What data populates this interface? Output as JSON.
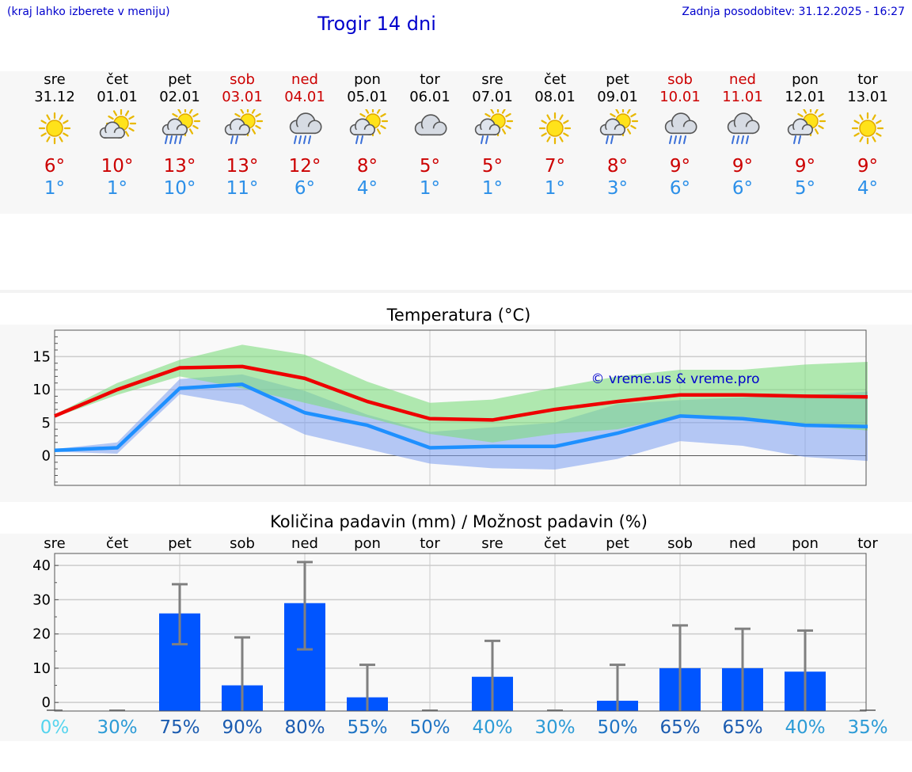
{
  "header": {
    "menu_hint": "(kraj lahko izberete v meniju)",
    "title": "Trogir 14 dni",
    "updated": "Zadnja posodobitev: 31.12.2025 - 16:27"
  },
  "days": [
    {
      "name": "sre",
      "date": "31.12",
      "icon": "sun-icon",
      "max": "6°",
      "min": "1°",
      "weekend": false
    },
    {
      "name": "čet",
      "date": "01.01",
      "icon": "sun-cloud-icon",
      "max": "10°",
      "min": "1°",
      "weekend": false
    },
    {
      "name": "pet",
      "date": "02.01",
      "icon": "sun-cloud-rain-icon",
      "max": "13°",
      "min": "10°",
      "weekend": false
    },
    {
      "name": "sob",
      "date": "03.01",
      "icon": "sun-cloud-light-rain-icon",
      "max": "13°",
      "min": "11°",
      "weekend": true
    },
    {
      "name": "ned",
      "date": "04.01",
      "icon": "cloud-rain-icon",
      "max": "12°",
      "min": "6°",
      "weekend": true
    },
    {
      "name": "pon",
      "date": "05.01",
      "icon": "sun-cloud-light-rain-icon",
      "max": "8°",
      "min": "4°",
      "weekend": false
    },
    {
      "name": "tor",
      "date": "06.01",
      "icon": "cloud-icon",
      "max": "5°",
      "min": "1°",
      "weekend": false
    },
    {
      "name": "sre",
      "date": "07.01",
      "icon": "sun-cloud-light-rain-icon",
      "max": "5°",
      "min": "1°",
      "weekend": false
    },
    {
      "name": "čet",
      "date": "08.01",
      "icon": "sun-icon",
      "max": "7°",
      "min": "1°",
      "weekend": false
    },
    {
      "name": "pet",
      "date": "09.01",
      "icon": "sun-cloud-light-rain-icon",
      "max": "8°",
      "min": "3°",
      "weekend": false
    },
    {
      "name": "sob",
      "date": "10.01",
      "icon": "cloud-rain-icon",
      "max": "9°",
      "min": "6°",
      "weekend": true
    },
    {
      "name": "ned",
      "date": "11.01",
      "icon": "cloud-rain-icon",
      "max": "9°",
      "min": "6°",
      "weekend": true
    },
    {
      "name": "pon",
      "date": "12.01",
      "icon": "sun-cloud-light-rain-icon",
      "max": "9°",
      "min": "5°",
      "weekend": false
    },
    {
      "name": "tor",
      "date": "13.01",
      "icon": "sun-icon",
      "max": "9°",
      "min": "4°",
      "weekend": false
    }
  ],
  "colors": {
    "max_line": "#ee0000",
    "min_line": "#1e90ff",
    "max_band": "#7ddc7d",
    "min_band": "#7b9ef0",
    "bar": "#0055ff",
    "errorbar": "#808080"
  },
  "chart_data": [
    {
      "type": "line",
      "title": "Temperatura (°C)",
      "watermark": "© vreme.us & vreme.pro",
      "ylim": [
        -4.5,
        19
      ],
      "yticks": [
        0,
        5,
        10,
        15
      ],
      "x": [
        0,
        1,
        2,
        3,
        4,
        5,
        6,
        7,
        8,
        9,
        10,
        11,
        12,
        13
      ],
      "series": [
        {
          "name": "max",
          "values": [
            6.0,
            10.0,
            13.3,
            13.5,
            11.7,
            8.2,
            5.6,
            5.4,
            7.0,
            8.2,
            9.2,
            9.2,
            9.0,
            8.9
          ],
          "band_low": [
            5.8,
            9.2,
            12.0,
            10.2,
            8.0,
            5.8,
            3.3,
            2.0,
            3.3,
            4.0,
            6.0,
            5.9,
            4.5,
            3.8
          ],
          "band_high": [
            6.2,
            11.0,
            14.5,
            16.8,
            15.3,
            11.2,
            8.0,
            8.5,
            10.3,
            12.0,
            13.0,
            13.0,
            13.8,
            14.2
          ]
        },
        {
          "name": "min",
          "values": [
            0.8,
            1.2,
            10.2,
            10.8,
            6.5,
            4.6,
            1.2,
            1.4,
            1.4,
            3.4,
            6.0,
            5.6,
            4.6,
            4.4
          ],
          "band_low": [
            0.6,
            0.3,
            9.3,
            7.7,
            3.2,
            1.0,
            -1.2,
            -1.9,
            -2.1,
            -0.5,
            2.2,
            1.5,
            -0.2,
            -0.8
          ],
          "band_high": [
            1.0,
            2.0,
            11.6,
            12.3,
            9.8,
            6.2,
            3.6,
            4.3,
            5.0,
            7.8,
            8.4,
            8.8,
            9.2,
            9.7
          ]
        }
      ]
    },
    {
      "type": "bar",
      "title": "Količina padavin (mm) / Možnost padavin (%)",
      "categories": [
        "sre",
        "čet",
        "pet",
        "sob",
        "ned",
        "pon",
        "tor",
        "sre",
        "čet",
        "pet",
        "sob",
        "ned",
        "pon",
        "tor"
      ],
      "ylim": [
        -2.5,
        43.5
      ],
      "yticks": [
        0,
        10,
        20,
        30,
        40
      ],
      "values": [
        0,
        0,
        26,
        5,
        29,
        1.5,
        0,
        7.5,
        0,
        0.5,
        10,
        10,
        9,
        0
      ],
      "err_low": [
        0,
        0,
        17,
        0,
        15.5,
        0,
        0,
        0,
        0,
        0,
        0,
        0,
        0,
        0
      ],
      "err_high": [
        0,
        0,
        34.5,
        19,
        41,
        11,
        0,
        18,
        0,
        11,
        22.5,
        21.5,
        21,
        0
      ],
      "chances": [
        "0%",
        "30%",
        "75%",
        "90%",
        "80%",
        "55%",
        "50%",
        "40%",
        "30%",
        "50%",
        "65%",
        "65%",
        "40%",
        "35%"
      ]
    }
  ]
}
